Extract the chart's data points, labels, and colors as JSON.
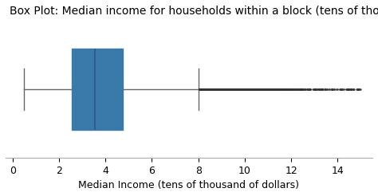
{
  "title": "Box Plot: Median income for households within a block (tens of thousands of dollars)",
  "xlabel": "Median Income (tens of thousand of dollars)",
  "xlim": [
    -0.3,
    15.5
  ],
  "xticks": [
    0,
    2,
    4,
    6,
    8,
    10,
    12,
    14
  ],
  "q1": 2.5634,
  "median": 3.5348,
  "q3": 4.7432,
  "whisker_low": 0.4999,
  "whisker_high": 8.0125,
  "box_color": "#4f8fbf",
  "box_edgecolor": "#3a7aaa",
  "median_color": "#2a6090",
  "whisker_color": "#666666",
  "flier_color": "#333333",
  "flier_alpha": 0.9,
  "flier_size": 3,
  "title_fontsize": 10,
  "xlabel_fontsize": 9,
  "tick_fontsize": 9,
  "figsize": [
    4.74,
    2.46
  ],
  "dpi": 100,
  "outlier_seed": 0,
  "num_outliers_dense": 2500,
  "outlier_min": 8.06,
  "outlier_max": 15.0
}
